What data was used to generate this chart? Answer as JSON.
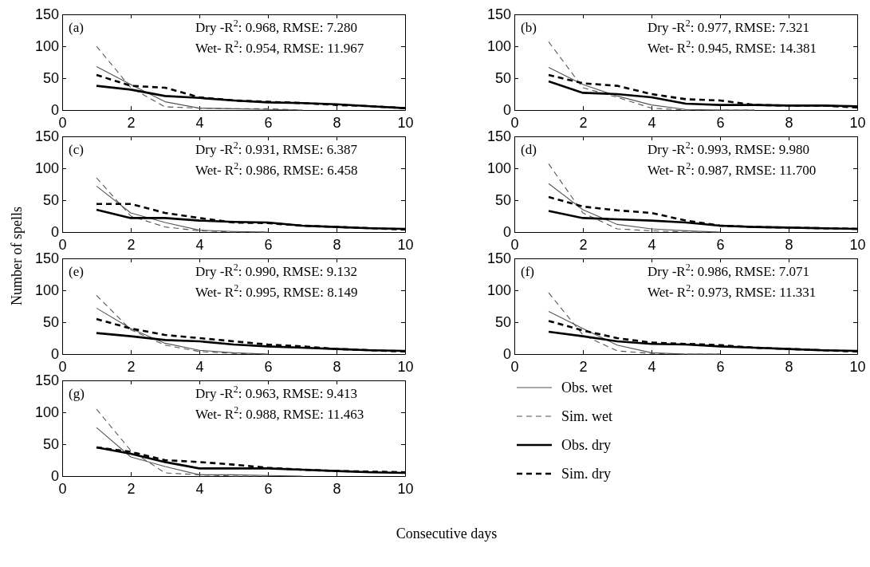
{
  "chart_data": [
    {
      "type": "line",
      "x": [
        1,
        2,
        3,
        4,
        5,
        6,
        7,
        8,
        9,
        10
      ],
      "xlim": [
        0,
        10
      ],
      "xticks": [
        0,
        2,
        4,
        6,
        8,
        10
      ],
      "ylim": [
        0,
        150
      ],
      "yticks": [
        0,
        50,
        100,
        150
      ],
      "legend": false,
      "annotations": [
        "(a)",
        "Dry -R$^{2}$:  0.968, RMSE: 7.280",
        "Wet- R$^{2}$:  0.954, RMSE: 11.967"
      ],
      "series": [
        {
          "color": "#555555",
          "line_style": "solid",
          "values": [
            68,
            40,
            13,
            3,
            2,
            1,
            0,
            null,
            null,
            null
          ]
        },
        {
          "color": "#555555",
          "line_style": "dashed",
          "values": [
            100,
            35,
            5,
            3,
            2,
            2,
            0,
            null,
            null,
            null
          ]
        },
        {
          "color": "#000000",
          "line_style": "solid",
          "values": [
            38,
            32,
            22,
            19,
            15,
            12,
            11,
            9,
            6,
            3
          ]
        },
        {
          "color": "#000000",
          "line_style": "dashed",
          "values": [
            55,
            38,
            35,
            20,
            15,
            13,
            11,
            8,
            6,
            3
          ]
        }
      ]
    },
    {
      "type": "line",
      "x": [
        1,
        2,
        3,
        4,
        5,
        6,
        7,
        8,
        9,
        10
      ],
      "xlim": [
        0,
        10
      ],
      "xticks": [
        0,
        2,
        4,
        6,
        8,
        10
      ],
      "ylim": [
        0,
        150
      ],
      "yticks": [
        0,
        50,
        100,
        150
      ],
      "legend": false,
      "annotations": [
        "(b)",
        "Dry -R$^{2}$:  0.977, RMSE: 7.321",
        "Wet- R$^{2}$:  0.945, RMSE: 14.381"
      ],
      "series": [
        {
          "color": "#555555",
          "line_style": "solid",
          "values": [
            67,
            40,
            22,
            8,
            1,
            0,
            0,
            null,
            null,
            null
          ]
        },
        {
          "color": "#555555",
          "line_style": "dashed",
          "values": [
            107,
            35,
            20,
            3,
            0,
            0,
            0,
            null,
            null,
            null
          ]
        },
        {
          "color": "#000000",
          "line_style": "solid",
          "values": [
            45,
            27,
            25,
            20,
            10,
            8,
            8,
            7,
            7,
            6
          ]
        },
        {
          "color": "#000000",
          "line_style": "dashed",
          "values": [
            55,
            42,
            38,
            25,
            17,
            15,
            8,
            7,
            7,
            4
          ]
        }
      ]
    },
    {
      "type": "line",
      "x": [
        1,
        2,
        3,
        4,
        5,
        6,
        7,
        8,
        9,
        10
      ],
      "xlim": [
        0,
        10
      ],
      "xticks": [
        0,
        2,
        4,
        6,
        8,
        10
      ],
      "ylim": [
        0,
        150
      ],
      "yticks": [
        0,
        50,
        100,
        150
      ],
      "legend": false,
      "ylabel": "Number of spells",
      "annotations": [
        "(c)",
        "Dry -R$^{2}$:  0.931, RMSE: 6.387",
        "Wet- R$^{2}$:  0.986, RMSE: 6.458"
      ],
      "series": [
        {
          "color": "#555555",
          "line_style": "solid",
          "values": [
            72,
            30,
            15,
            3,
            1,
            0,
            null,
            null,
            null,
            null
          ]
        },
        {
          "color": "#555555",
          "line_style": "dashed",
          "values": [
            85,
            25,
            8,
            2,
            0,
            0,
            null,
            null,
            null,
            null
          ]
        },
        {
          "color": "#000000",
          "line_style": "solid",
          "values": [
            35,
            22,
            22,
            18,
            16,
            15,
            10,
            8,
            6,
            5
          ]
        },
        {
          "color": "#000000",
          "line_style": "dashed",
          "values": [
            44,
            44,
            30,
            22,
            15,
            14,
            10,
            8,
            6,
            4
          ]
        }
      ]
    },
    {
      "type": "line",
      "x": [
        1,
        2,
        3,
        4,
        5,
        6,
        7,
        8,
        9,
        10
      ],
      "xlim": [
        0,
        10
      ],
      "xticks": [
        0,
        2,
        4,
        6,
        8,
        10
      ],
      "ylim": [
        0,
        150
      ],
      "yticks": [
        0,
        50,
        100,
        150
      ],
      "legend": false,
      "annotations": [
        "(d)",
        "Dry -R$^{2}$:  0.993, RMSE: 9.980",
        "Wet- R$^{2}$:  0.987, RMSE: 11.700"
      ],
      "series": [
        {
          "color": "#555555",
          "line_style": "solid",
          "values": [
            76,
            35,
            12,
            5,
            2,
            0,
            null,
            null,
            null,
            null
          ]
        },
        {
          "color": "#555555",
          "line_style": "dashed",
          "values": [
            107,
            30,
            5,
            2,
            0,
            0,
            null,
            null,
            null,
            null
          ]
        },
        {
          "color": "#000000",
          "line_style": "solid",
          "values": [
            33,
            22,
            20,
            18,
            15,
            10,
            8,
            7,
            6,
            5
          ]
        },
        {
          "color": "#000000",
          "line_style": "dashed",
          "values": [
            55,
            40,
            34,
            30,
            18,
            10,
            8,
            7,
            6,
            5
          ]
        }
      ]
    },
    {
      "type": "line",
      "x": [
        1,
        2,
        3,
        4,
        5,
        6,
        7,
        8,
        9,
        10
      ],
      "xlim": [
        0,
        10
      ],
      "xticks": [
        0,
        2,
        4,
        6,
        8,
        10
      ],
      "ylim": [
        0,
        150
      ],
      "yticks": [
        0,
        50,
        100,
        150
      ],
      "legend": false,
      "annotations": [
        "(e)",
        "Dry -R$^{2}$:  0.990, RMSE: 9.132",
        "Wet- R$^{2}$:  0.995, RMSE: 8.149"
      ],
      "series": [
        {
          "color": "#555555",
          "line_style": "solid",
          "values": [
            72,
            40,
            17,
            6,
            2,
            0,
            null,
            null,
            null,
            null
          ]
        },
        {
          "color": "#555555",
          "line_style": "dashed",
          "values": [
            92,
            38,
            14,
            4,
            1,
            0,
            null,
            null,
            null,
            null
          ]
        },
        {
          "color": "#000000",
          "line_style": "solid",
          "values": [
            33,
            28,
            22,
            20,
            15,
            12,
            10,
            8,
            6,
            5
          ]
        },
        {
          "color": "#000000",
          "line_style": "dashed",
          "values": [
            55,
            40,
            30,
            25,
            20,
            15,
            12,
            8,
            6,
            4
          ]
        }
      ]
    },
    {
      "type": "line",
      "x": [
        1,
        2,
        3,
        4,
        5,
        6,
        7,
        8,
        9,
        10
      ],
      "xlim": [
        0,
        10
      ],
      "xticks": [
        0,
        2,
        4,
        6,
        8,
        10
      ],
      "ylim": [
        0,
        150
      ],
      "yticks": [
        0,
        50,
        100,
        150
      ],
      "legend": false,
      "annotations": [
        "(f)",
        "Dry -R$^{2}$:  0.986, RMSE: 7.071",
        "Wet- R$^{2}$:  0.973, RMSE: 11.331"
      ],
      "series": [
        {
          "color": "#555555",
          "line_style": "solid",
          "values": [
            67,
            40,
            14,
            2,
            0,
            0,
            null,
            null,
            null,
            null
          ]
        },
        {
          "color": "#555555",
          "line_style": "dashed",
          "values": [
            96,
            30,
            5,
            1,
            0,
            0,
            null,
            null,
            null,
            null
          ]
        },
        {
          "color": "#000000",
          "line_style": "solid",
          "values": [
            35,
            28,
            20,
            16,
            15,
            12,
            10,
            8,
            6,
            5
          ]
        },
        {
          "color": "#000000",
          "line_style": "dashed",
          "values": [
            52,
            37,
            25,
            18,
            16,
            14,
            10,
            8,
            6,
            4
          ]
        }
      ]
    },
    {
      "type": "line",
      "x": [
        1,
        2,
        3,
        4,
        5,
        6,
        7,
        8,
        9,
        10
      ],
      "xlim": [
        0,
        10
      ],
      "xticks": [
        0,
        2,
        4,
        6,
        8,
        10
      ],
      "ylim": [
        0,
        150
      ],
      "yticks": [
        0,
        50,
        100,
        150
      ],
      "legend": "right",
      "xlabel": "Consecutive days",
      "annotations": [
        "(g)",
        "Dry -R$^{2}$:  0.963, RMSE: 9.413",
        "Wet- R$^{2}$:  0.988, RMSE: 11.463"
      ],
      "series": [
        {
          "name": "Obs. wet",
          "color": "#555555",
          "line_style": "solid",
          "values": [
            76,
            30,
            15,
            2,
            2,
            1,
            0,
            null,
            null,
            null
          ]
        },
        {
          "name": "Sim. wet",
          "color": "#555555",
          "line_style": "dashed",
          "values": [
            105,
            40,
            5,
            2,
            0,
            0,
            null,
            null,
            null,
            null
          ]
        },
        {
          "name": "Obs. dry",
          "color": "#000000",
          "line_style": "solid",
          "values": [
            45,
            35,
            22,
            12,
            12,
            12,
            10,
            8,
            6,
            5
          ]
        },
        {
          "name": "Sim. dry",
          "color": "#000000",
          "line_style": "dashed",
          "values": [
            45,
            38,
            25,
            22,
            18,
            13,
            10,
            8,
            7,
            6
          ]
        }
      ]
    }
  ]
}
